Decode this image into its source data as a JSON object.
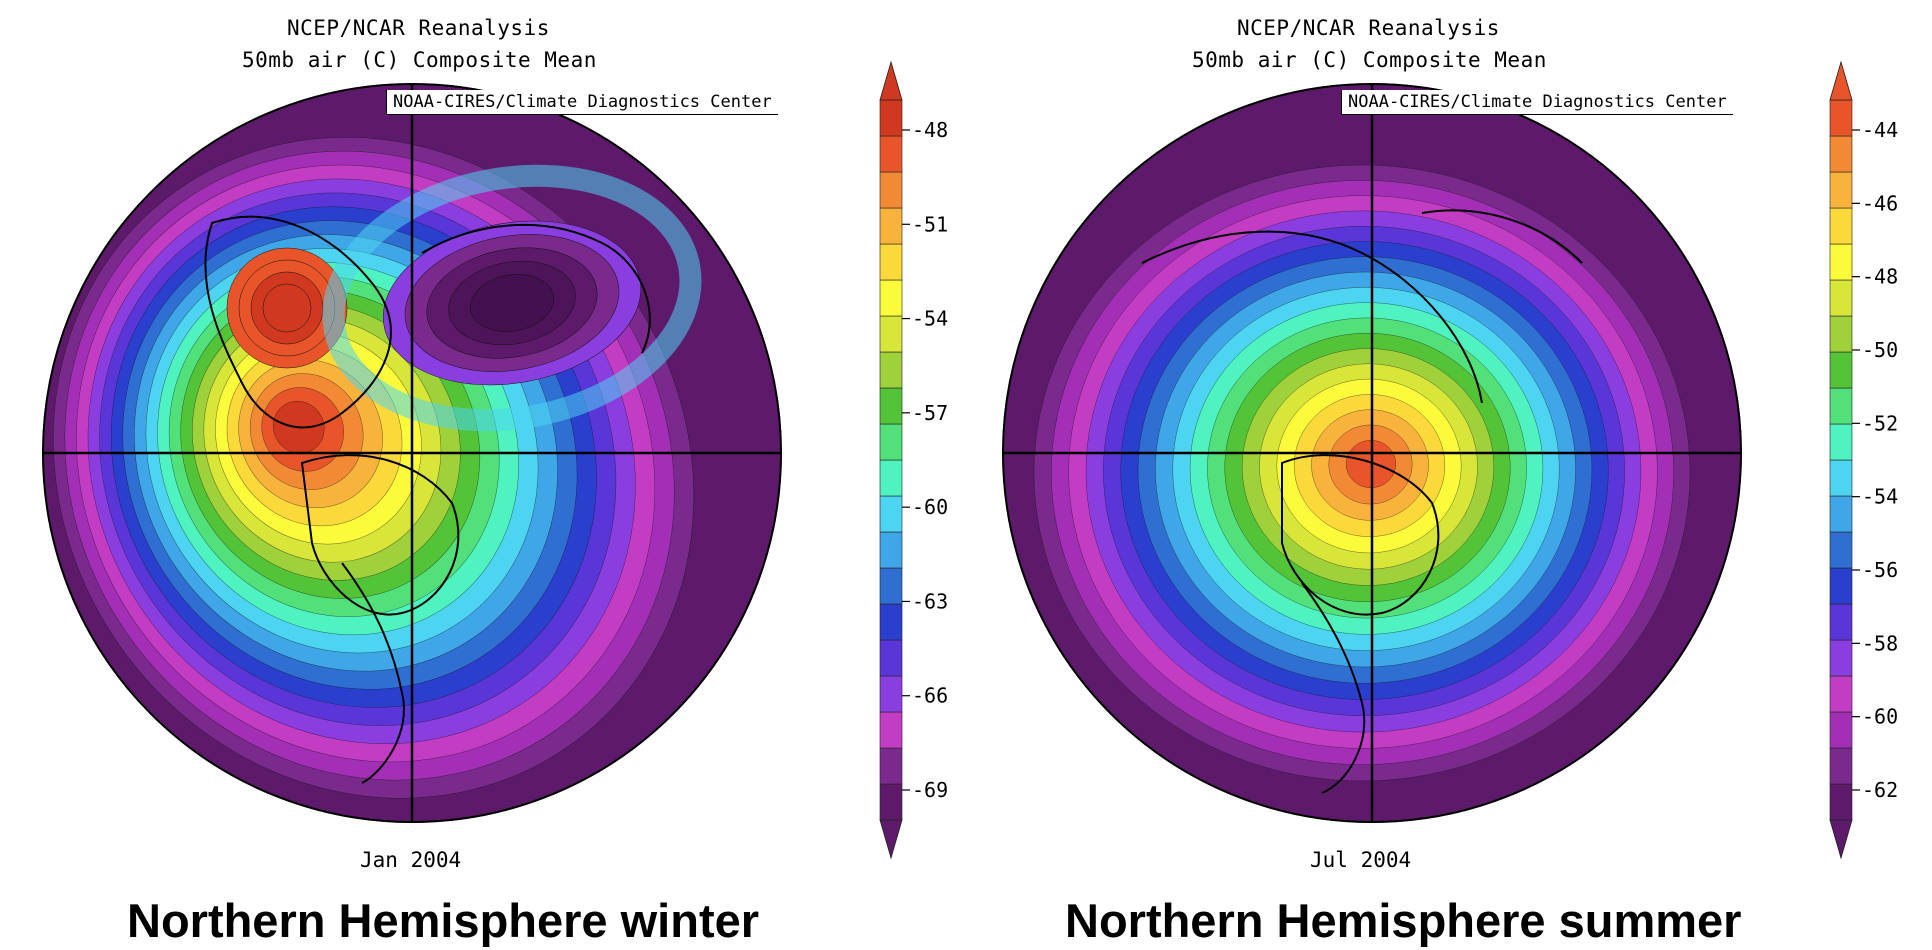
{
  "palette": [
    "#5e1a6a",
    "#7a2a8c",
    "#a32fb6",
    "#c33cc4",
    "#8a3ee0",
    "#5a36d8",
    "#2b3fcf",
    "#2f6fd2",
    "#3fa7e8",
    "#4dd4f0",
    "#4ef3c0",
    "#52e07a",
    "#53c437",
    "#9fd13a",
    "#d8e63a",
    "#fbfb3c",
    "#fcd93a",
    "#f8b33c",
    "#f28a35",
    "#e8552a",
    "#d0381f"
  ],
  "panels": [
    {
      "header_line1": "NCEP/NCAR Reanalysis",
      "header_line2": "50mb air (C) Composite Mean",
      "credit": "NOAA-CIRES/Climate Diagnostics Center",
      "date": "Jan 2004",
      "caption": "Northern Hemisphere winter",
      "colorbar": {
        "ticks": [
          "-48",
          "-51",
          "-54",
          "-57",
          "-60",
          "-63",
          "-66",
          "-69"
        ],
        "colors": [
          "#5e1a6a",
          "#7a2a8c",
          "#c33cc4",
          "#8a3ee0",
          "#5a36d8",
          "#2b3fcf",
          "#2f6fd2",
          "#3fa7e8",
          "#4dd4f0",
          "#4ef3c0",
          "#52e07a",
          "#53c437",
          "#9fd13a",
          "#d8e63a",
          "#fbfb3c",
          "#fcd93a",
          "#f8b33c",
          "#f28a35",
          "#e8552a",
          "#d0381f"
        ]
      }
    },
    {
      "header_line1": "NCEP/NCAR Reanalysis",
      "header_line2": "50mb air (C) Composite Mean",
      "credit": "NOAA-CIRES/Climate Diagnostics Center",
      "date": "Jul 2004",
      "caption": "Northern Hemisphere summer",
      "colorbar": {
        "ticks": [
          "-44",
          "-46",
          "-48",
          "-50",
          "-52",
          "-54",
          "-56",
          "-58",
          "-60",
          "-62"
        ],
        "colors": [
          "#5e1a6a",
          "#7a2a8c",
          "#a32fb6",
          "#c33cc4",
          "#8a3ee0",
          "#5a36d8",
          "#2b3fcf",
          "#2f6fd2",
          "#3fa7e8",
          "#4dd4f0",
          "#4ef3c0",
          "#52e07a",
          "#53c437",
          "#9fd13a",
          "#d8e63a",
          "#fbfb3c",
          "#fcd93a",
          "#f8b33c",
          "#f28a35",
          "#e8552a"
        ]
      }
    }
  ]
}
